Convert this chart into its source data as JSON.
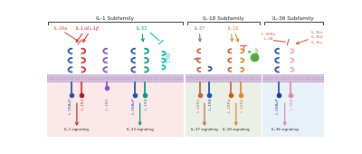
{
  "title_il1": "IL-1 Subfamily",
  "title_il18": "IL-18 Subfamily",
  "title_il36": "IL-36 Subfamily",
  "bg_il1": "#fce8e8",
  "bg_il18": "#eaf0e6",
  "bg_il36": "#e8f0f8",
  "membrane_color_top": "#c8b4d0",
  "membrane_color_bot": "#b8a8c8",
  "colors": {
    "blue": "#2255aa",
    "dark_blue": "#1a3a88",
    "red": "#cc3333",
    "dark_red": "#992222",
    "purple": "#8855bb",
    "teal": "#009988",
    "teal2": "#00bbbb",
    "salmon": "#cc5544",
    "orange": "#dd8833",
    "dark_orange": "#bb6600",
    "green": "#55aa44",
    "pink": "#dd88aa",
    "light_pink": "#eeaacc",
    "coral": "#cc6644",
    "gray": "#777777",
    "black": "#222222"
  }
}
